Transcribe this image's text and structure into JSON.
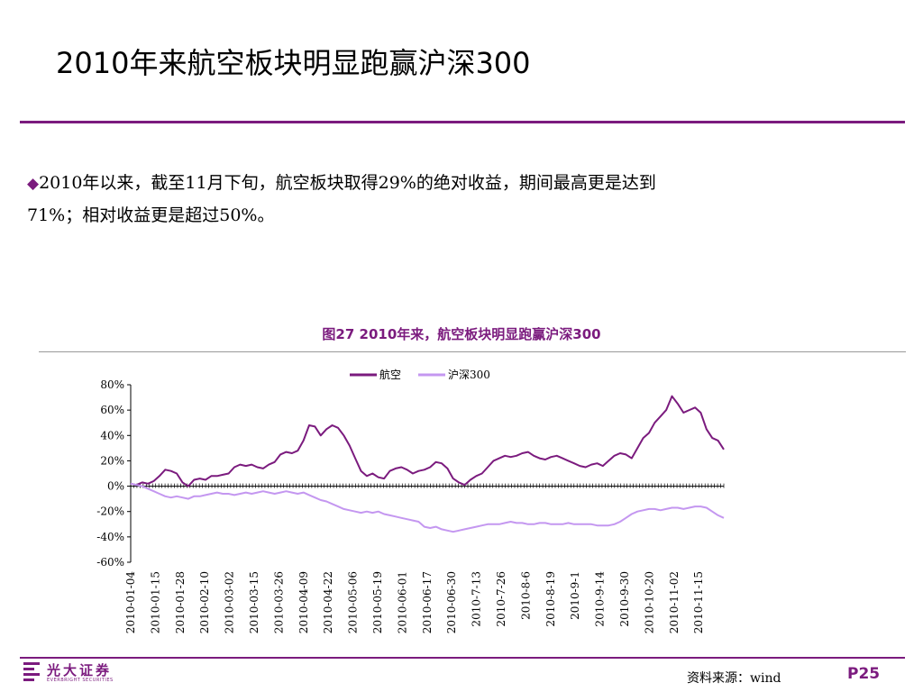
{
  "slide": {
    "title": "2010年来航空板块明显跑赢沪深300",
    "bullet_symbol": "◆",
    "bullet_line1": "2010年以来，截至11月下旬，航空板块取得29%的绝对收益，期间最高更是达到",
    "bullet_line2": "71%；相对收益更是超过50%。"
  },
  "figure": {
    "caption": "图27  2010年来，航空板块明显跑赢沪深300"
  },
  "chart_data": {
    "type": "line",
    "legend_position": "top-center",
    "ylim": [
      -60,
      80
    ],
    "yticks": [
      80,
      60,
      40,
      20,
      0,
      -20,
      -40,
      -60
    ],
    "ytick_labels": [
      "80%",
      "60%",
      "40%",
      "20%",
      "0%",
      "-20%",
      "-40%",
      "-60%"
    ],
    "x_tick_labels": [
      "2010-01-04",
      "2010-01-15",
      "2010-01-28",
      "2010-02-10",
      "2010-03-02",
      "2010-03-15",
      "2010-03-26",
      "2010-04-09",
      "2010-04-22",
      "2010-05-06",
      "2010-05-19",
      "2010-06-01",
      "2010-06-17",
      "2010-06-30",
      "2010-7-13",
      "2010-7-26",
      "2010-8-6",
      "2010-8-19",
      "2010-9-1",
      "2010-9-14",
      "2010-9-30",
      "2010-10-20",
      "2010-11-02",
      "2010-11-15"
    ],
    "series": [
      {
        "name": "航空",
        "color": "#7b1b7e",
        "values": [
          2,
          1,
          3,
          2,
          4,
          8,
          13,
          12,
          10,
          3,
          0,
          5,
          6,
          5,
          8,
          8,
          9,
          10,
          15,
          17,
          16,
          17,
          15,
          14,
          17,
          19,
          25,
          27,
          26,
          28,
          36,
          48,
          47,
          40,
          45,
          48,
          46,
          40,
          32,
          22,
          12,
          8,
          10,
          7,
          6,
          12,
          14,
          15,
          13,
          10,
          12,
          13,
          15,
          19,
          18,
          14,
          6,
          3,
          1,
          5,
          8,
          10,
          15,
          20,
          22,
          24,
          23,
          24,
          26,
          27,
          24,
          22,
          21,
          23,
          24,
          22,
          20,
          18,
          16,
          15,
          17,
          18,
          16,
          20,
          24,
          26,
          25,
          22,
          30,
          38,
          42,
          50,
          55,
          60,
          71,
          65,
          58,
          60,
          62,
          58,
          45,
          38,
          36,
          29
        ]
      },
      {
        "name": "沪深300",
        "color": "#c497f0",
        "values": [
          2,
          1,
          0,
          -2,
          -4,
          -6,
          -8,
          -9,
          -8,
          -9,
          -10,
          -8,
          -8,
          -7,
          -6,
          -5,
          -6,
          -6,
          -7,
          -6,
          -5,
          -6,
          -5,
          -4,
          -5,
          -6,
          -5,
          -4,
          -5,
          -6,
          -5,
          -7,
          -9,
          -11,
          -12,
          -14,
          -16,
          -18,
          -19,
          -20,
          -21,
          -20,
          -21,
          -20,
          -22,
          -23,
          -24,
          -25,
          -26,
          -27,
          -28,
          -32,
          -33,
          -32,
          -34,
          -35,
          -36,
          -35,
          -34,
          -33,
          -32,
          -31,
          -30,
          -30,
          -30,
          -29,
          -28,
          -29,
          -29,
          -30,
          -30,
          -29,
          -29,
          -30,
          -30,
          -30,
          -29,
          -30,
          -30,
          -30,
          -30,
          -31,
          -31,
          -31,
          -30,
          -28,
          -25,
          -22,
          -20,
          -19,
          -18,
          -18,
          -19,
          -18,
          -17,
          -17,
          -18,
          -17,
          -16,
          -16,
          -17,
          -20,
          -23,
          -25
        ]
      }
    ]
  },
  "footer": {
    "logo_cn": "光大证券",
    "logo_en": "EVERBRIGHT SECURITIES",
    "source": "资料来源：wind",
    "page": "P25"
  }
}
